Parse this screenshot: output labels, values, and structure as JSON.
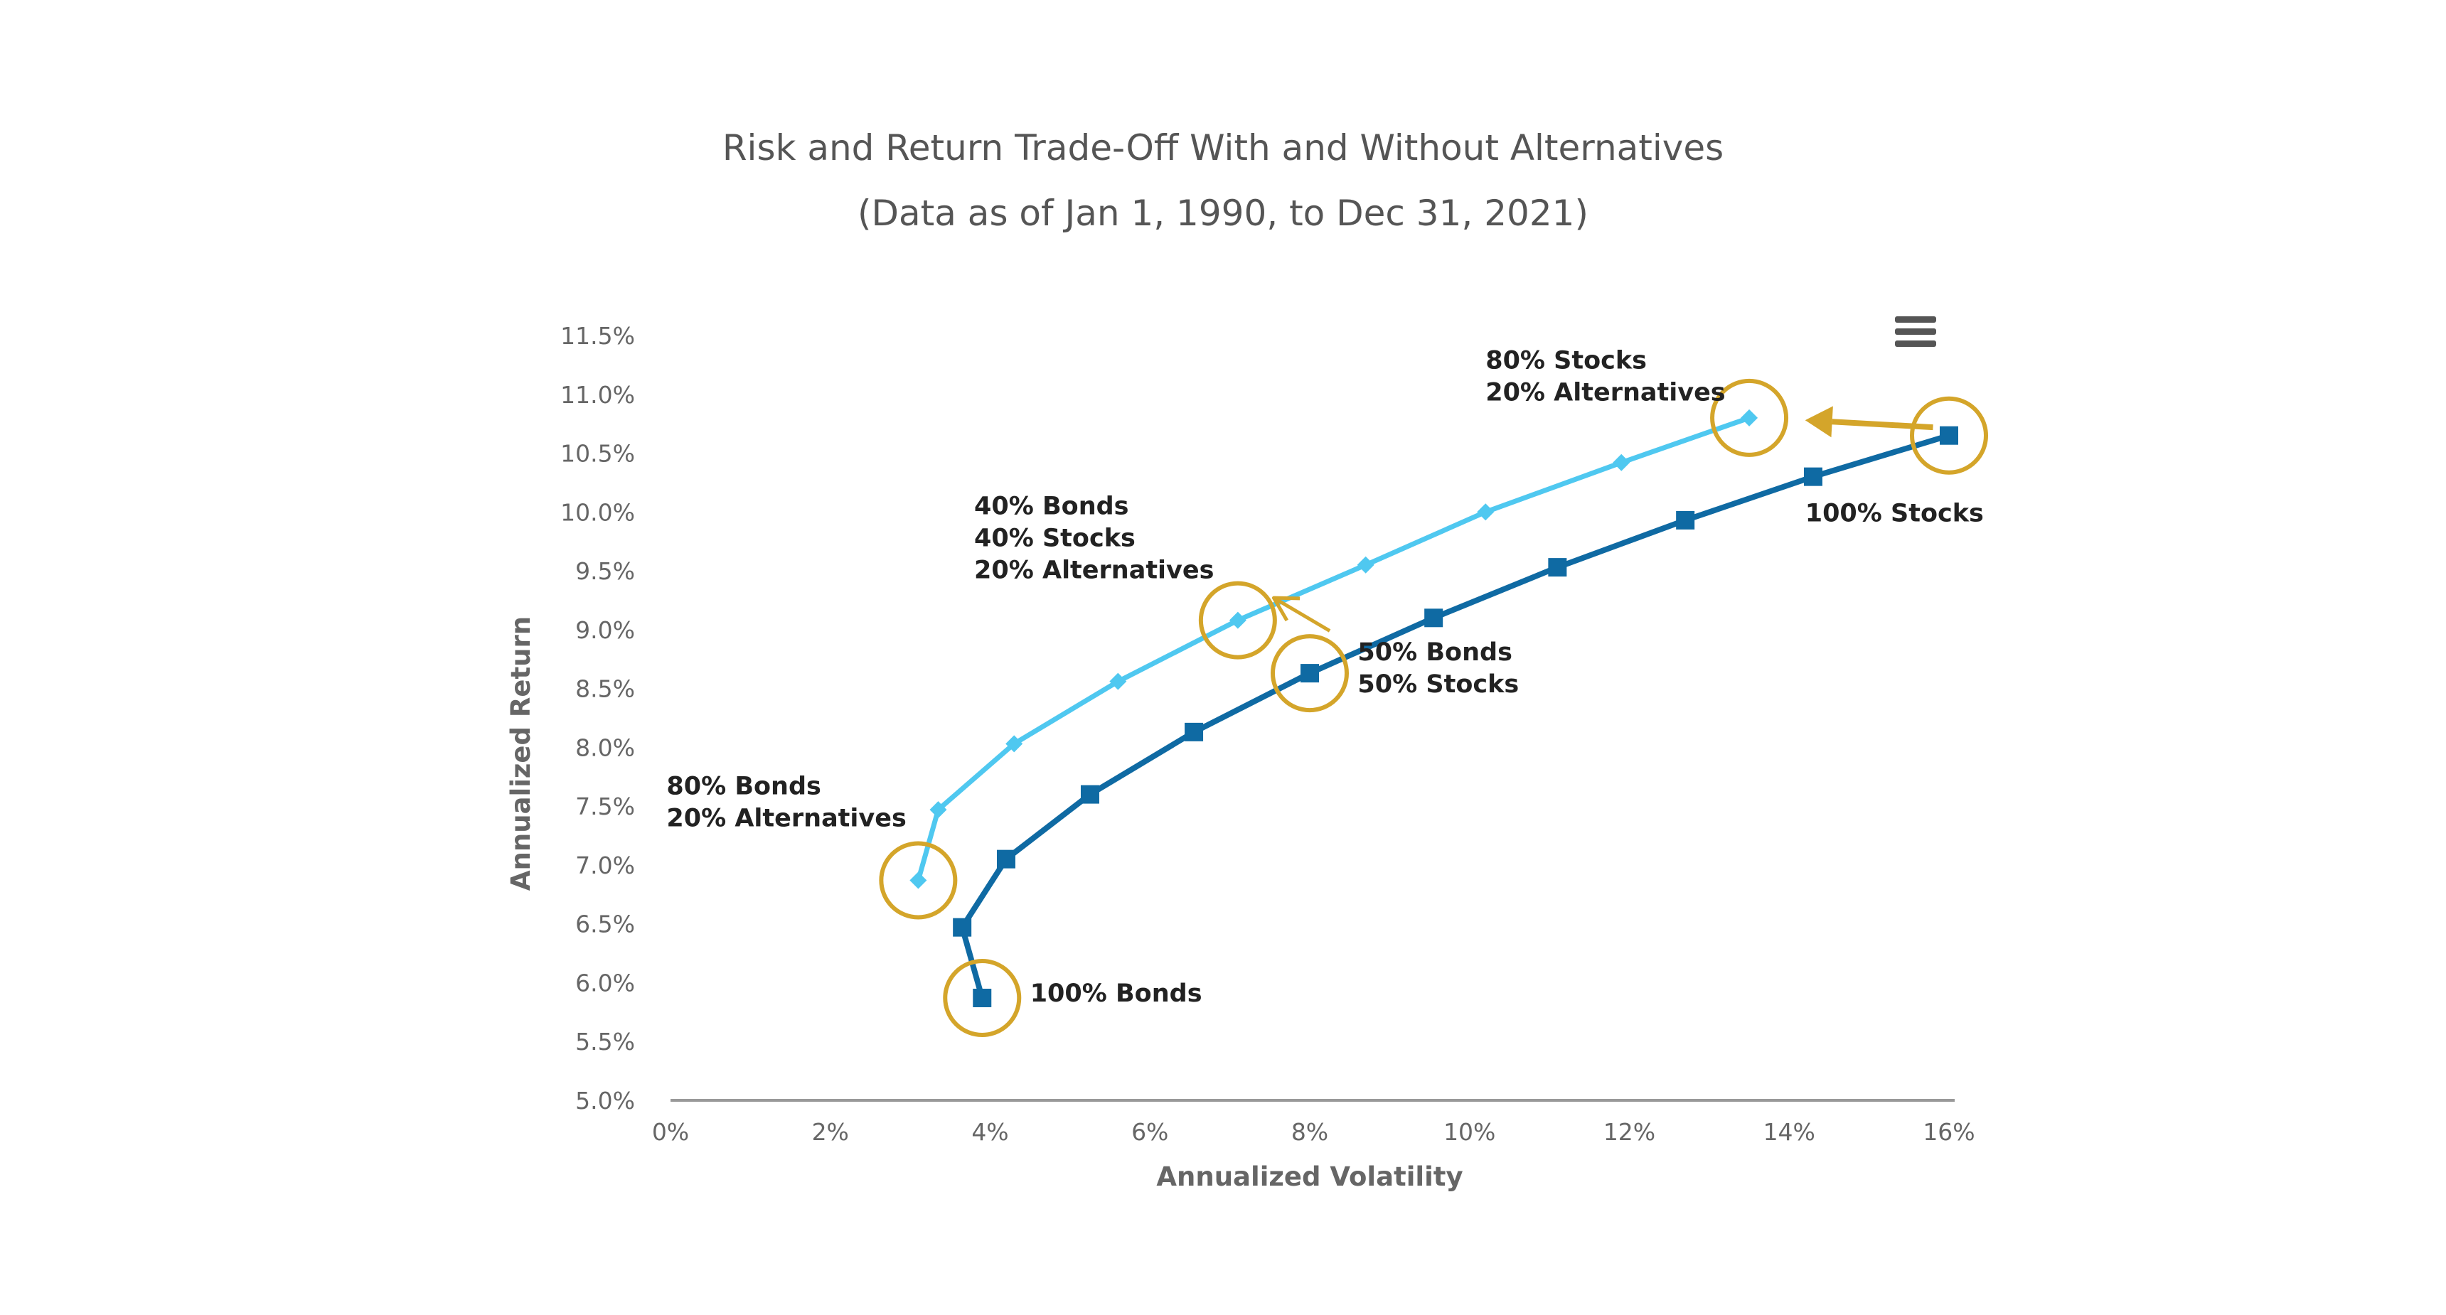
{
  "chart_data": {
    "type": "line",
    "title": "Risk and Return Trade-Off With and Without Alternatives",
    "subtitle": "(Data as of Jan 1, 1990, to Dec 31, 2021)",
    "xlabel": "Annualized Volatility",
    "ylabel": "Annualized Return",
    "xlim": [
      0,
      16
    ],
    "ylim": [
      5.0,
      11.5
    ],
    "x_ticks": [
      "0%",
      "2%",
      "4%",
      "6%",
      "8%",
      "10%",
      "12%",
      "14%",
      "16%"
    ],
    "y_ticks": [
      "5.0%",
      "5.5%",
      "6.0%",
      "6.5%",
      "7.0%",
      "7.5%",
      "8.0%",
      "8.5%",
      "9.0%",
      "9.5%",
      "10.0%",
      "10.5%",
      "11.0%",
      "11.5%"
    ],
    "grid": false,
    "legend": "none",
    "series": [
      {
        "color": "#4fc8f0",
        "marker": "diamond",
        "points": [
          [
            3.1,
            6.87
          ],
          [
            3.35,
            7.47
          ],
          [
            4.3,
            8.03
          ],
          [
            5.6,
            8.56
          ],
          [
            7.1,
            9.08
          ],
          [
            8.7,
            9.55
          ],
          [
            10.2,
            10.0
          ],
          [
            11.9,
            10.42
          ],
          [
            13.5,
            10.8
          ]
        ]
      },
      {
        "color": "#0f6aa3",
        "marker": "square",
        "points": [
          [
            3.9,
            5.87
          ],
          [
            3.65,
            6.47
          ],
          [
            4.2,
            7.05
          ],
          [
            5.25,
            7.6
          ],
          [
            6.55,
            8.13
          ],
          [
            8.0,
            8.63
          ],
          [
            9.55,
            9.1
          ],
          [
            11.1,
            9.53
          ],
          [
            12.7,
            9.93
          ],
          [
            14.3,
            10.3
          ],
          [
            16.0,
            10.65
          ]
        ]
      }
    ],
    "highlights": [
      {
        "series": 0,
        "point": 0
      },
      {
        "series": 0,
        "point": 4
      },
      {
        "series": 0,
        "point": 8
      },
      {
        "series": 1,
        "point": 0
      },
      {
        "series": 1,
        "point": 5
      },
      {
        "series": 1,
        "point": 10
      }
    ],
    "annotations": [
      {
        "lines": [
          "80% Stocks",
          "20% Alternatives"
        ],
        "x": 10.2,
        "y": 11.22
      },
      {
        "lines": [
          "100% Stocks"
        ],
        "x": 14.2,
        "y": 9.92
      },
      {
        "lines": [
          "40% Bonds",
          "40% Stocks",
          "20% Alternatives"
        ],
        "x": 3.8,
        "y": 9.98
      },
      {
        "lines": [
          "50% Bonds",
          "50% Stocks"
        ],
        "x": 8.6,
        "y": 8.74
      },
      {
        "lines": [
          "80% Bonds",
          "20% Alternatives"
        ],
        "x": -0.05,
        "y": 7.6
      },
      {
        "lines": [
          "100% Bonds"
        ],
        "x": 4.5,
        "y": 5.84
      }
    ],
    "arrows": [
      {
        "from": [
          15.8,
          10.72
        ],
        "to": [
          14.2,
          10.78
        ],
        "style": "filled"
      },
      {
        "from": [
          8.25,
          8.99
        ],
        "to": [
          7.55,
          9.27
        ],
        "style": "open"
      }
    ],
    "highlight_color": "#d4a52a"
  },
  "toolbar": {
    "menu_icon": "hamburger-menu-icon"
  }
}
